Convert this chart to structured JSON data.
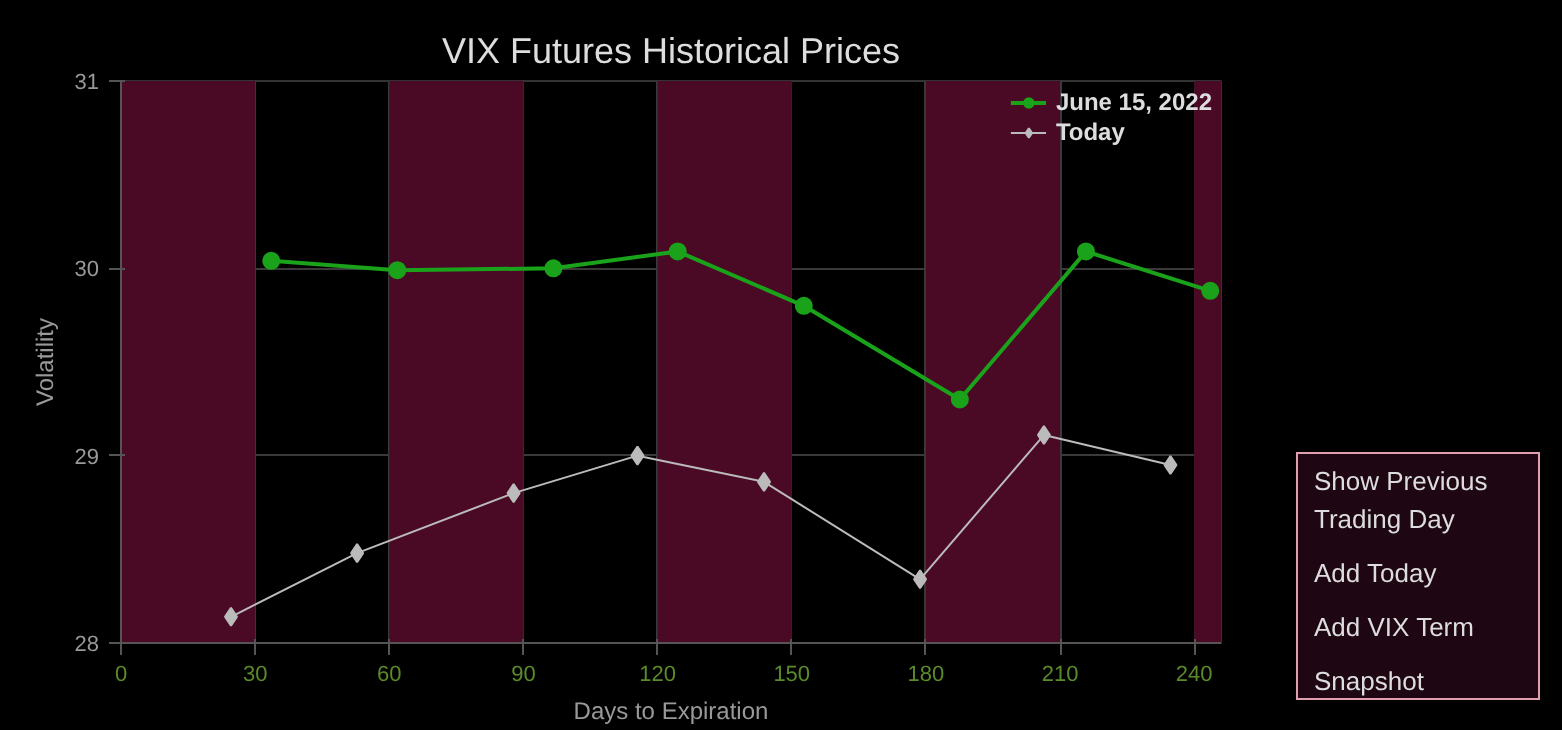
{
  "chart_data": {
    "type": "line",
    "title": "VIX Futures Historical Prices",
    "xlabel": "Days to Expiration",
    "ylabel": "Volatility",
    "xlim": [
      0,
      246
    ],
    "xticks": [
      0,
      30,
      60,
      90,
      120,
      150,
      180,
      210,
      240
    ],
    "ylim": [
      28,
      31
    ],
    "yticks": [
      28,
      29,
      30,
      31
    ],
    "grid": true,
    "legend": "top right",
    "bands": [
      {
        "axis": "x",
        "from": 0,
        "to": 30,
        "color": "#4a0a26"
      },
      {
        "axis": "x",
        "from": 60,
        "to": 90,
        "color": "#4a0a26"
      },
      {
        "axis": "x",
        "from": 120,
        "to": 150,
        "color": "#4a0a26"
      },
      {
        "axis": "x",
        "from": 180,
        "to": 210,
        "color": "#4a0a26"
      },
      {
        "axis": "x",
        "from": 240,
        "to": 246,
        "color": "#4a0a26"
      }
    ],
    "series": [
      {
        "name": "June 15, 2022",
        "color": "#1aa31a",
        "marker": "circle",
        "x": [
          33.6,
          61.8,
          96.7,
          124.5,
          152.7,
          187.6,
          215.8,
          243.6
        ],
        "values": [
          30.04,
          29.99,
          30.0,
          30.09,
          29.8,
          29.3,
          30.09,
          29.88
        ]
      },
      {
        "name": "Today",
        "color": "#bbbbbb",
        "marker": "diamond",
        "x": [
          24.6,
          52.8,
          87.8,
          115.5,
          143.8,
          178.7,
          206.4,
          234.7
        ],
        "values": [
          28.14,
          28.48,
          28.8,
          29.0,
          28.86,
          28.34,
          29.11,
          28.95
        ]
      }
    ],
    "annotations": [
      "Show Previous\nTrading Day",
      "Add Today",
      "Add VIX Term",
      "Snapshot"
    ]
  }
}
